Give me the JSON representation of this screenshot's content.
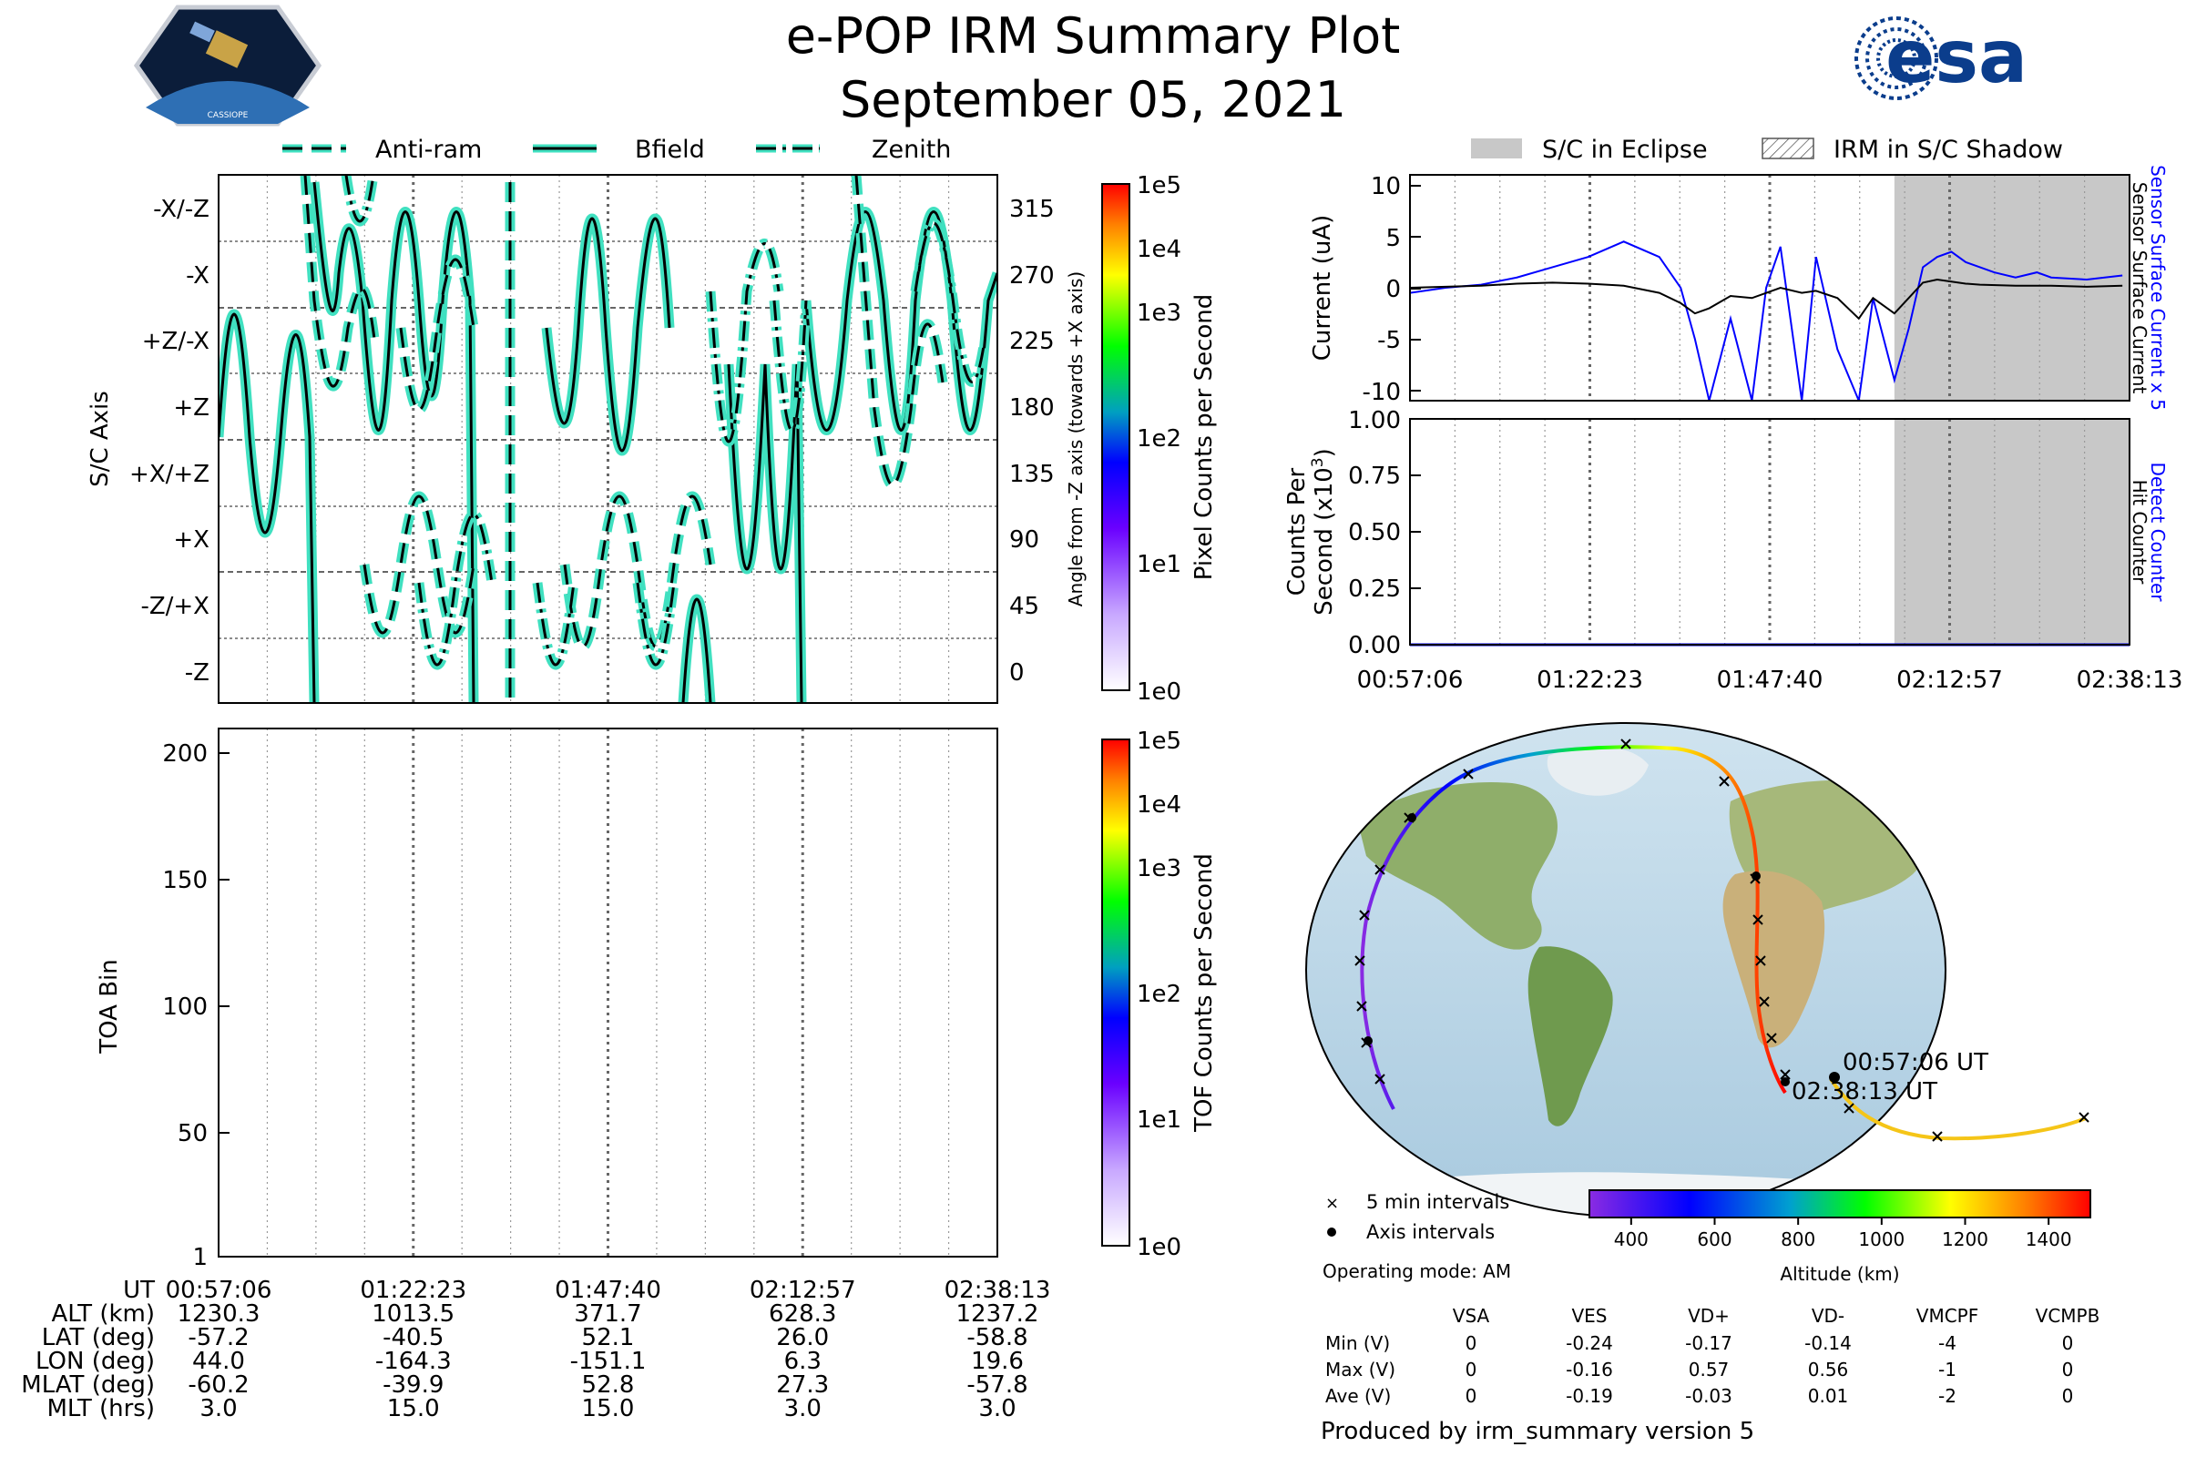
{
  "header": {
    "title": "e-POP IRM Summary Plot",
    "date": "September 05, 2021",
    "mission_logo_text": "CASSIOPE",
    "agency_logo_text": "esa"
  },
  "colors": {
    "trace_fill": "#40e0c0",
    "sensor_current": "#0000ff",
    "surface_current": "#000000",
    "eclipse": "#c8c8c8"
  },
  "time_axis": {
    "ticks": [
      "00:57:06",
      "01:22:23",
      "01:47:40",
      "02:12:57",
      "02:38:13"
    ]
  },
  "footer_table": {
    "row_labels": [
      "UT",
      "ALT (km)",
      "LAT (deg)",
      "LON (deg)",
      "MLAT (deg)",
      "MLT (hrs)"
    ],
    "columns": [
      [
        "00:57:06",
        "1230.3",
        "-57.2",
        "44.0",
        "-60.2",
        "3.0"
      ],
      [
        "01:22:23",
        "1013.5",
        "-40.5",
        "-164.3",
        "-39.9",
        "15.0"
      ],
      [
        "01:47:40",
        "371.7",
        "52.1",
        "-151.1",
        "52.8",
        "15.0"
      ],
      [
        "02:12:57",
        "628.3",
        "26.0",
        "6.3",
        "27.3",
        "3.0"
      ],
      [
        "02:38:13",
        "1237.2",
        "-58.8",
        "19.6",
        "-57.8",
        "3.0"
      ]
    ]
  },
  "map_panel": {
    "legend": [
      "5 min intervals",
      "Axis intervals"
    ],
    "operating_mode": "Operating mode: AM",
    "start_label": "00:57:06 UT",
    "end_label": "02:38:13 UT",
    "colorbar_label": "Altitude (km)",
    "colorbar_ticks": [
      "400",
      "600",
      "800",
      "1000",
      "1200",
      "1400"
    ],
    "colorbar_range": [
      300,
      1500
    ]
  },
  "voltage_table": {
    "headers": [
      "VSA",
      "VES",
      "VD+",
      "VD-",
      "VMCPF",
      "VCMPB"
    ],
    "rows": [
      {
        "label": "Min (V)",
        "values": [
          "0",
          "-0.24",
          "-0.17",
          "-0.14",
          "-4",
          "0"
        ]
      },
      {
        "label": "Max (V)",
        "values": [
          "0",
          "-0.16",
          "0.57",
          "0.56",
          "-1",
          "0"
        ]
      },
      {
        "label": "Ave (V)",
        "values": [
          "0",
          "-0.19",
          "-0.03",
          "0.01",
          "-2",
          "0"
        ]
      }
    ]
  },
  "credit": "Produced by irm_summary version 5",
  "chart_data": [
    {
      "type": "line",
      "panel": "attitude",
      "legend": [
        "Anti-ram",
        "Bfield",
        "Zenith"
      ],
      "ylabel": "S/C Axis",
      "ylabel_right": "Angle from -Z axis (towards +X axis)",
      "left_ticks": [
        "-X/-Z",
        "-X",
        "+Z/-X",
        "+Z",
        "+X/+Z",
        "+X",
        "-Z/+X",
        "-Z"
      ],
      "right_ticks": [
        "315",
        "270",
        "225",
        "180",
        "135",
        "90",
        "45",
        "0"
      ],
      "ylim": [
        -20,
        340
      ],
      "colorbar_label": "Pixel Counts per Second",
      "colorbar_ticks": [
        "1e5",
        "1e4",
        "1e3",
        "1e2",
        "1e1",
        "1e0"
      ]
    },
    {
      "type": "heatmap",
      "panel": "toa",
      "ylabel": "TOA Bin",
      "yticks": [
        "1",
        "50",
        "100",
        "150",
        "200"
      ],
      "ylim": [
        1,
        210
      ],
      "colorbar_label": "TOF Counts per Second",
      "colorbar_ticks": [
        "1e5",
        "1e4",
        "1e3",
        "1e2",
        "1e1",
        "1e0"
      ]
    },
    {
      "type": "line",
      "panel": "current",
      "ylabel": "Current (uA)",
      "right_label_1": "Sensor Surface Current x 5",
      "right_label_2": "Sensor Surface Current",
      "yticks": [
        "10",
        "5",
        "0",
        "-5",
        "-10"
      ],
      "ylim": [
        -11,
        11
      ],
      "legend": [
        "S/C in Eclipse",
        "IRM in S/C Shadow"
      ],
      "eclipse_window": [
        "02:05:00",
        "02:40:00"
      ],
      "series": [
        {
          "name": "Sensor Surface Current x 5",
          "x_min": [
            0,
            5,
            10,
            15,
            20,
            25,
            30,
            35,
            38,
            40,
            42,
            45,
            48,
            50,
            52,
            55,
            57,
            60,
            63,
            65,
            68,
            70,
            72,
            74,
            76,
            78,
            80,
            82,
            85,
            88,
            90,
            95,
            100
          ],
          "y": [
            -0.5,
            0,
            0.3,
            1,
            2,
            3,
            4.5,
            3,
            0,
            -5,
            -11,
            -3,
            -11,
            0,
            4,
            -11,
            3,
            -6,
            -11,
            -1,
            -9,
            -4,
            2,
            3,
            3.5,
            2.5,
            2,
            1.5,
            1,
            1.5,
            1,
            0.8,
            1.2
          ]
        },
        {
          "name": "Sensor Surface Current",
          "x_min": [
            0,
            5,
            10,
            15,
            20,
            25,
            30,
            35,
            38,
            40,
            42,
            45,
            48,
            50,
            52,
            55,
            57,
            60,
            63,
            65,
            68,
            70,
            72,
            74,
            76,
            78,
            80,
            85,
            90,
            95,
            100
          ],
          "y": [
            0,
            0.1,
            0.2,
            0.4,
            0.5,
            0.4,
            0.2,
            -0.5,
            -1.5,
            -2.5,
            -2,
            -0.8,
            -1,
            -0.5,
            0,
            -0.5,
            -0.3,
            -1,
            -3,
            -1,
            -2.5,
            -1,
            0.5,
            0.8,
            0.6,
            0.4,
            0.3,
            0.2,
            0.2,
            0.1,
            0.2
          ]
        }
      ]
    },
    {
      "type": "line",
      "panel": "counts",
      "ylabel_1": "Counts Per",
      "ylabel_2": "Second (x10",
      "ylabel_sup": "3",
      "ylabel_close": ")",
      "right_label_1": "Detect Counter",
      "right_label_2": "Hit Counter",
      "yticks": [
        "1.00",
        "0.75",
        "0.50",
        "0.25",
        "0.00"
      ],
      "ylim": [
        0,
        1
      ],
      "series": [
        {
          "name": "Detect Counter",
          "x_min": [
            0,
            101
          ],
          "y": [
            0,
            0
          ]
        }
      ]
    }
  ]
}
